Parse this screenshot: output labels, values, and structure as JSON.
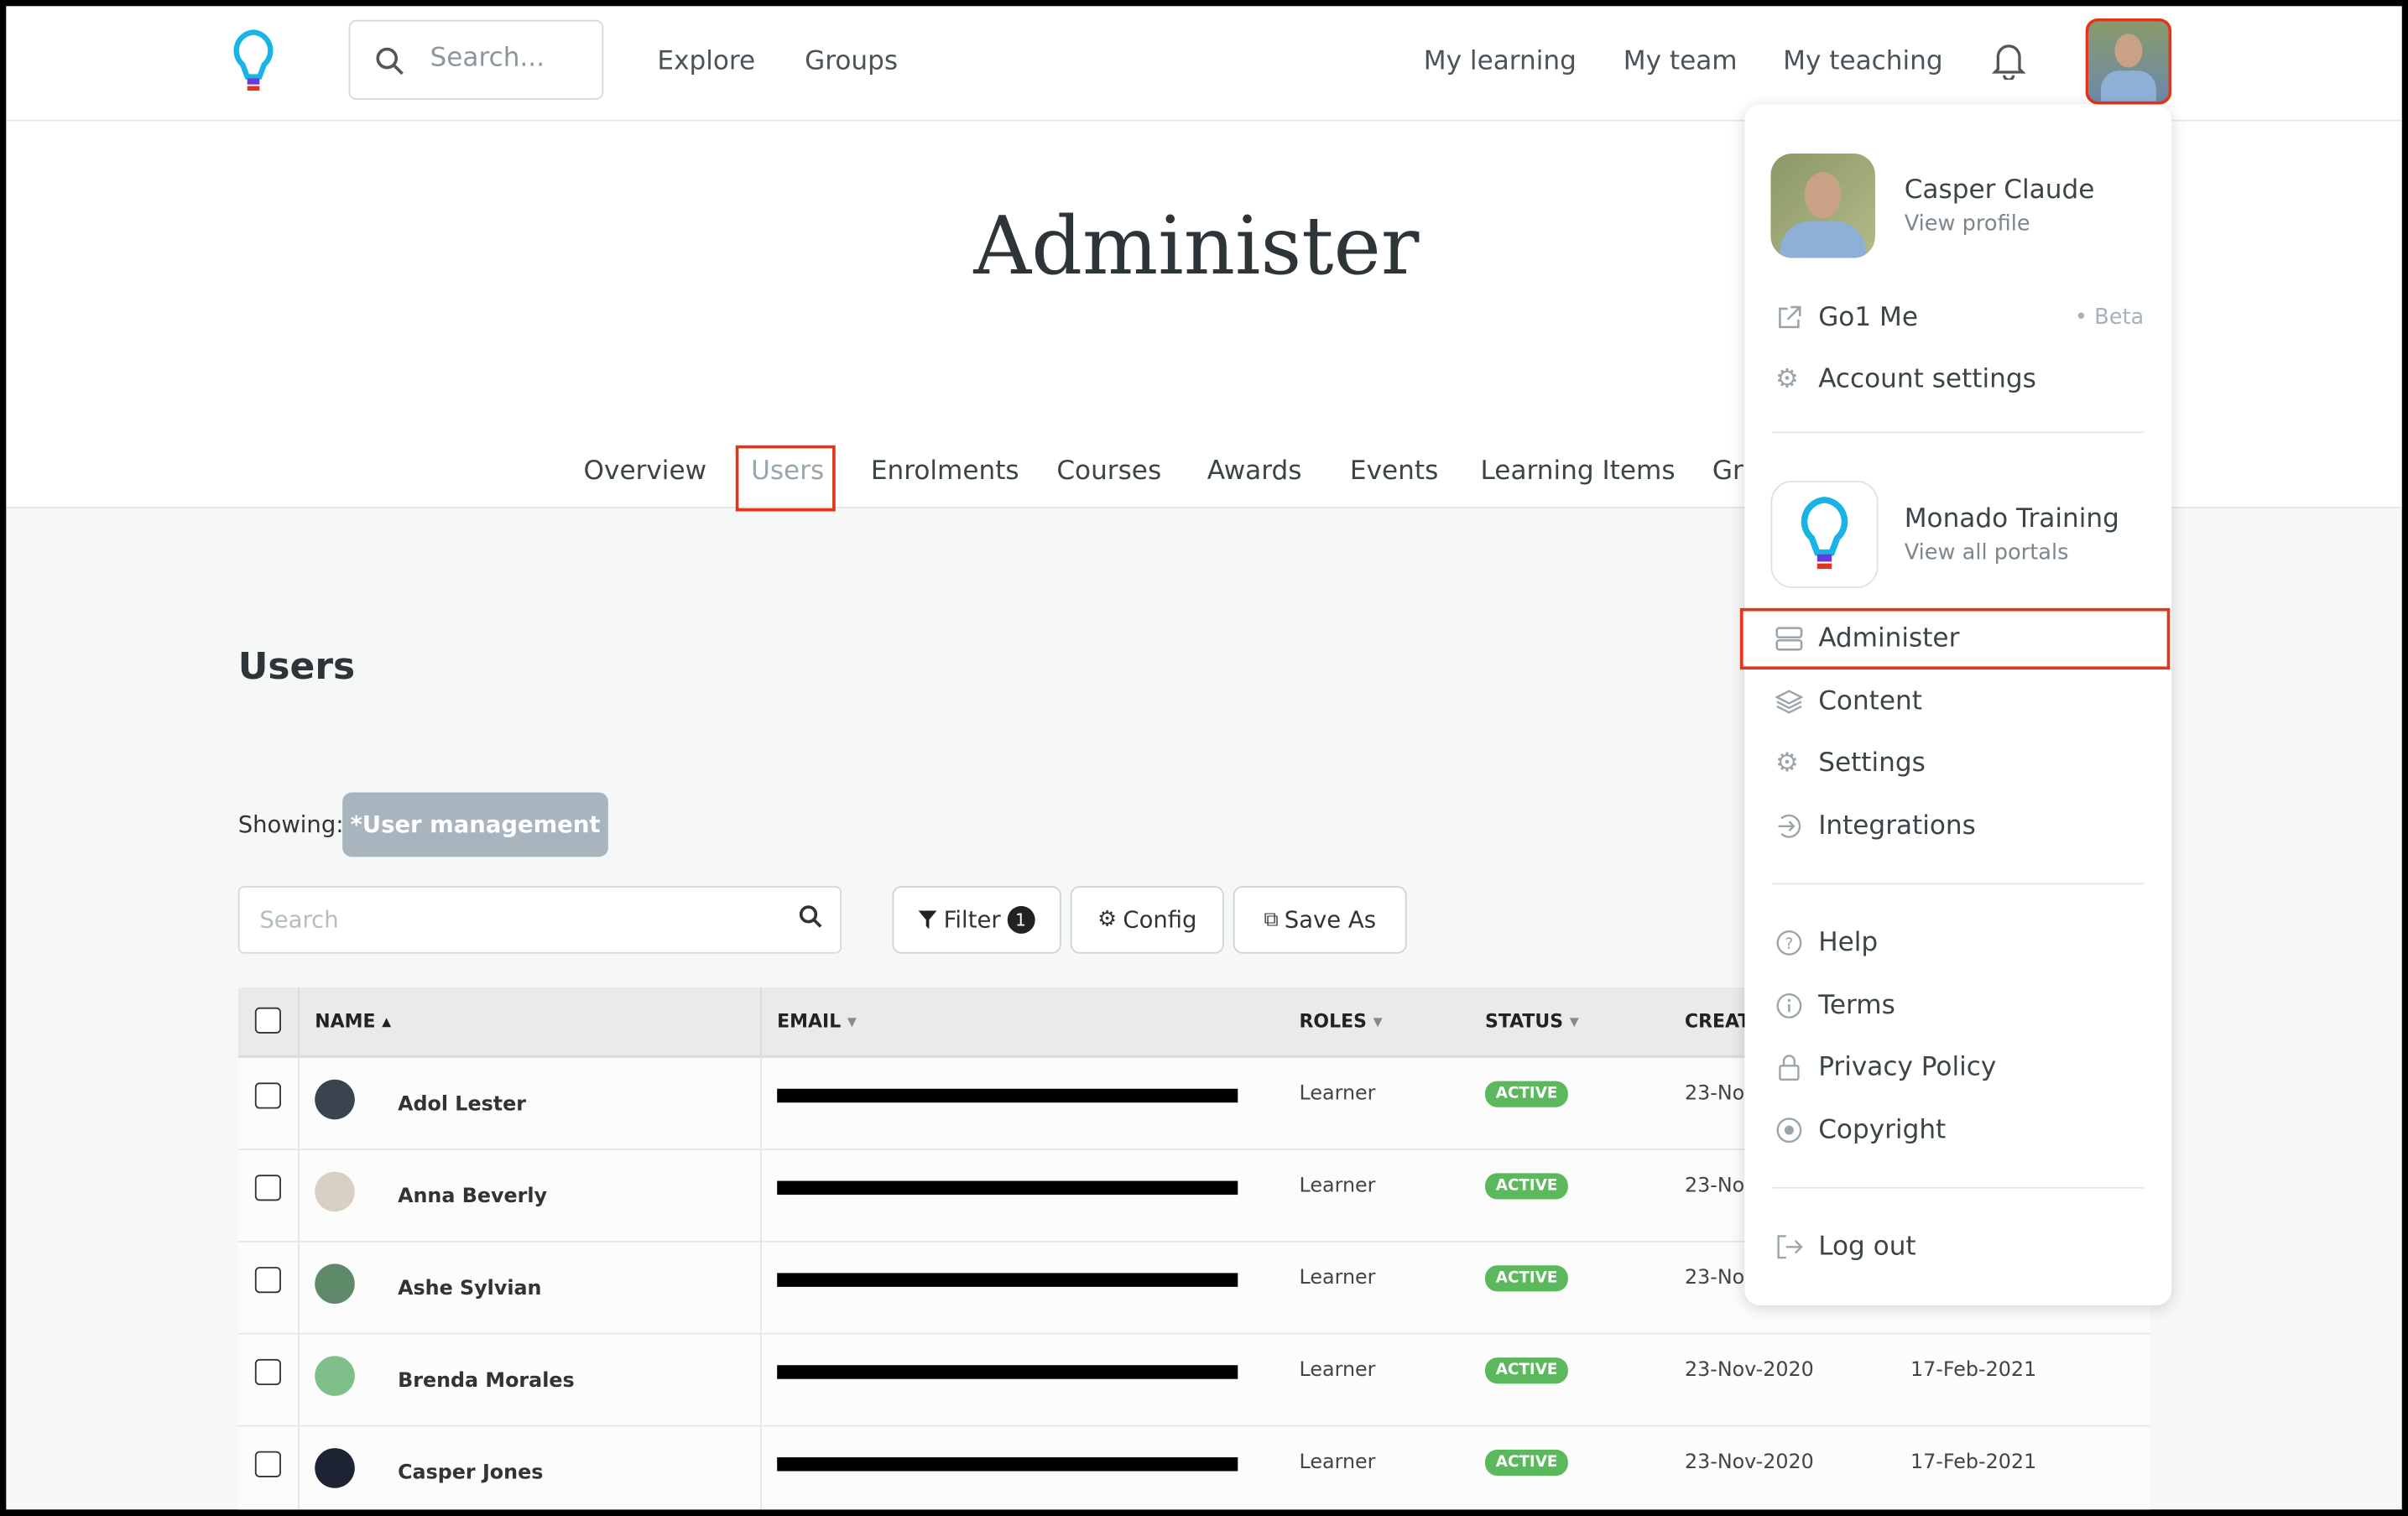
{
  "header": {
    "search_placeholder": "Search...",
    "nav": [
      "Explore",
      "Groups"
    ],
    "right_nav": [
      "My learning",
      "My team",
      "My teaching"
    ]
  },
  "hero": {
    "title": "Administer",
    "tabs": [
      "Overview",
      "Users",
      "Enrolments",
      "Courses",
      "Awards",
      "Events",
      "Learning Items",
      "Gr"
    ],
    "active_tab": "Users"
  },
  "users": {
    "heading": "Users",
    "showing_label": "Showing:",
    "view_pill": "*User management",
    "search_placeholder": "Search",
    "filter_label": "Filter",
    "filter_count": "1",
    "config_label": "Config",
    "save_as_label": "Save As"
  },
  "table": {
    "columns": [
      "NAME",
      "EMAIL",
      "ROLES",
      "STATUS",
      "CREAT"
    ],
    "rows": [
      {
        "name": "Adol Lester",
        "role": "Learner",
        "status": "ACTIVE",
        "created": "23-Nov",
        "other": ""
      },
      {
        "name": "Anna Beverly",
        "role": "Learner",
        "status": "ACTIVE",
        "created": "23-Nov",
        "other": ""
      },
      {
        "name": "Ashe Sylvian",
        "role": "Learner",
        "status": "ACTIVE",
        "created": "23-Nov",
        "other": ""
      },
      {
        "name": "Brenda Morales",
        "role": "Learner",
        "status": "ACTIVE",
        "created": "23-Nov-2020",
        "other": "17-Feb-2021"
      },
      {
        "name": "Casper Jones",
        "role": "Learner",
        "status": "ACTIVE",
        "created": "23-Nov-2020",
        "other": "17-Feb-2021"
      }
    ]
  },
  "menu": {
    "user_name": "Casper Claude",
    "view_profile": "View profile",
    "go1me": "Go1 Me",
    "beta": "Beta",
    "account_settings": "Account settings",
    "portal_name": "Monado Training",
    "view_portals": "View all portals",
    "administer": "Administer",
    "content": "Content",
    "settings": "Settings",
    "integrations": "Integrations",
    "help": "Help",
    "terms": "Terms",
    "privacy": "Privacy Policy",
    "copyright": "Copyright",
    "logout": "Log out"
  },
  "colors": {
    "highlight": "#e0361c",
    "active_badge": "#5cb85c",
    "pill": "#a9b5be"
  }
}
